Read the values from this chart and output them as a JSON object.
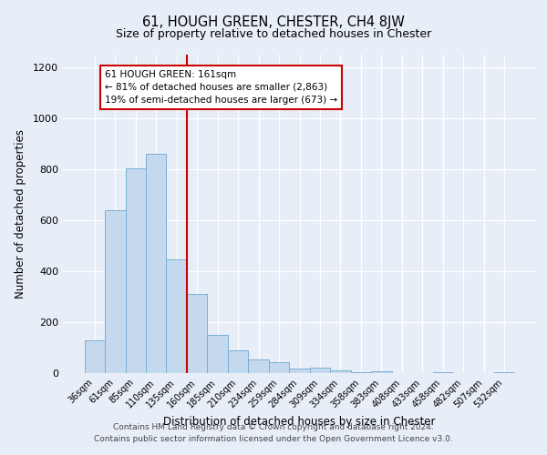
{
  "title": "61, HOUGH GREEN, CHESTER, CH4 8JW",
  "subtitle": "Size of property relative to detached houses in Chester",
  "xlabel": "Distribution of detached houses by size in Chester",
  "ylabel": "Number of detached properties",
  "bar_labels": [
    "36sqm",
    "61sqm",
    "85sqm",
    "110sqm",
    "135sqm",
    "160sqm",
    "185sqm",
    "210sqm",
    "234sqm",
    "259sqm",
    "284sqm",
    "309sqm",
    "334sqm",
    "358sqm",
    "383sqm",
    "408sqm",
    "433sqm",
    "458sqm",
    "482sqm",
    "507sqm",
    "532sqm"
  ],
  "bar_values": [
    130,
    640,
    805,
    860,
    445,
    310,
    150,
    90,
    52,
    42,
    18,
    22,
    10,
    5,
    8,
    0,
    0,
    2,
    0,
    0,
    2
  ],
  "bar_color": "#c5d9ee",
  "bar_edge_color": "#7aafd4",
  "vline_x_index": 5,
  "vline_color": "#cc0000",
  "annotation_text": "61 HOUGH GREEN: 161sqm\n← 81% of detached houses are smaller (2,863)\n19% of semi-detached houses are larger (673) →",
  "annotation_box_color": "#cc0000",
  "ylim": [
    0,
    1250
  ],
  "yticks": [
    0,
    200,
    400,
    600,
    800,
    1000,
    1200
  ],
  "footer1": "Contains HM Land Registry data © Crown copyright and database right 2024.",
  "footer2": "Contains public sector information licensed under the Open Government Licence v3.0.",
  "bg_color": "#e8eef8",
  "plot_bg_color": "#e8eef8"
}
